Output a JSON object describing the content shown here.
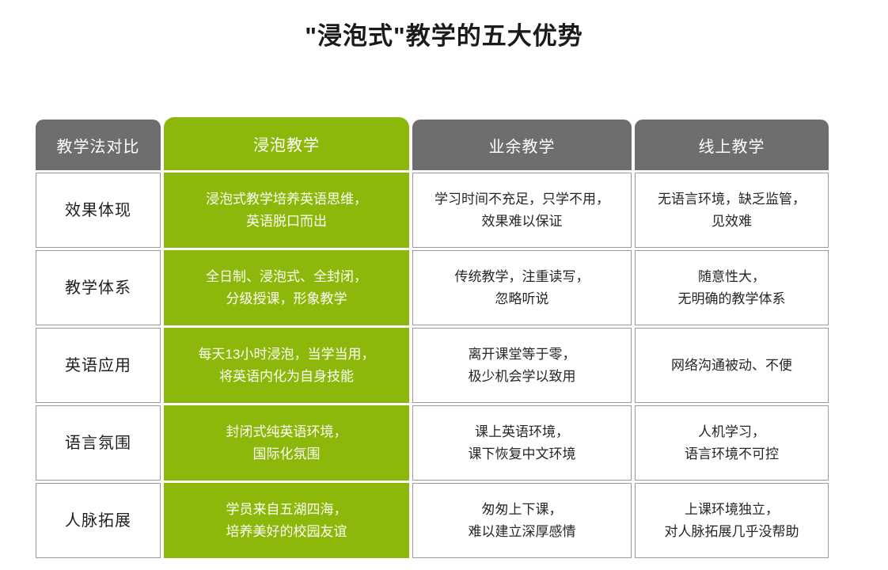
{
  "page": {
    "title": "\"浸泡式\"教学的五大优势"
  },
  "table": {
    "header": {
      "compare": "教学法对比",
      "immersion": "浸泡教学",
      "amateur": "业余教学",
      "online": "线上教学"
    },
    "rows": [
      {
        "label": "效果体现",
        "immersion": "浸泡式教学培养英语思维，\n英语脱口而出",
        "amateur": "学习时间不充足，只学不用，\n效果难以保证",
        "online": "无语言环境，缺乏监管，\n见效难"
      },
      {
        "label": "教学体系",
        "immersion": "全日制、浸泡式、全封闭，\n分级授课，形象教学",
        "amateur": "传统教学，注重读写，\n忽略听说",
        "online": "随意性大，\n无明确的教学体系"
      },
      {
        "label": "英语应用",
        "immersion": "每天13小时浸泡，当学当用，\n将英语内化为自身技能",
        "amateur": "离开课堂等于零，\n极少机会学以致用",
        "online": "网络沟通被动、不便"
      },
      {
        "label": "语言氛围",
        "immersion": "封闭式纯英语环境，\n国际化氛围",
        "amateur": "课上英语环境，\n课下恢复中文环境",
        "online": "人机学习，\n语言环境不可控"
      },
      {
        "label": "人脉拓展",
        "immersion": "学员来自五湖四海，\n培养美好的校园友谊",
        "amateur": "匆匆上下课，\n难以建立深厚感情",
        "online": "上课环境独立，\n对人脉拓展几乎没帮助"
      }
    ]
  },
  "colors": {
    "green": "#8CB80C",
    "header_gray": "#6E6E6E",
    "cell_border": "#9B9B9B",
    "title_text": "#1A1A1A",
    "cell_text": "#262626",
    "header_text": "#FFFFFF"
  },
  "chart_data": {
    "type": "table",
    "title": "\"浸泡式\"教学的五大优势",
    "columns": [
      "教学法对比",
      "浸泡教学",
      "业余教学",
      "线上教学"
    ],
    "rows": [
      [
        "效果体现",
        "浸泡式教学培养英语思维，英语脱口而出",
        "学习时间不充足，只学不用，效果难以保证",
        "无语言环境，缺乏监管，见效难"
      ],
      [
        "教学体系",
        "全日制、浸泡式、全封闭，分级授课，形象教学",
        "传统教学，注重读写，忽略听说",
        "随意性大，无明确的教学体系"
      ],
      [
        "英语应用",
        "每天13小时浸泡，当学当用，将英语内化为自身技能",
        "离开课堂等于零，极少机会学以致用",
        "网络沟通被动、不便"
      ],
      [
        "语言氛围",
        "封闭式纯英语环境，国际化氛围",
        "课上英语环境，课下恢复中文环境",
        "人机学习，语言环境不可控"
      ],
      [
        "人脉拓展",
        "学员来自五湖四海，培养美好的校园友谊",
        "匆匆上下课，难以建立深厚感情",
        "上课环境独立，对人脉拓展几乎没帮助"
      ]
    ],
    "layout_hints": {
      "highlight_column": "浸泡教学",
      "highlight_color": "#8CB80C",
      "header_color": "#6E6E6E"
    }
  }
}
